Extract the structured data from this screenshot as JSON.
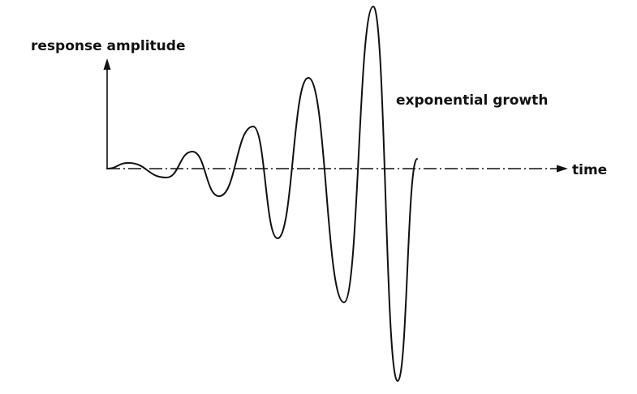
{
  "labels": {
    "y_axis": "response amplitude",
    "x_axis": "time",
    "annotation": "exponential growth"
  },
  "colors": {
    "ink": "#111111",
    "background": "#ffffff"
  }
}
